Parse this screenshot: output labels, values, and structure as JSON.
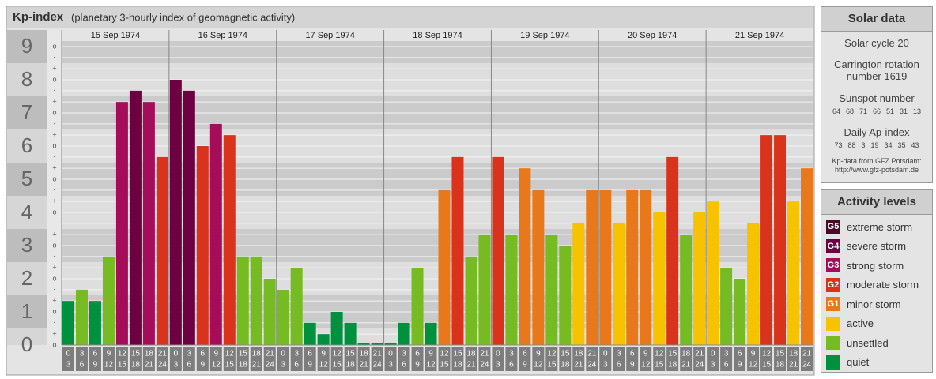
{
  "chart_data": {
    "type": "bar",
    "title": "Kp-index",
    "subtitle": "(planetary 3-hourly index of geomagnetic activity)",
    "ylim": [
      0,
      9.5
    ],
    "yticks": [
      0,
      1,
      2,
      3,
      4,
      5,
      6,
      7,
      8,
      9
    ],
    "subticks": [
      {
        "value": 0,
        "label": "o"
      },
      {
        "value": 0.33,
        "label": "+"
      },
      {
        "value": 0.67,
        "label": "-"
      },
      {
        "value": 1,
        "label": "o"
      },
      {
        "value": 1.33,
        "label": "+"
      },
      {
        "value": 1.67,
        "label": "-"
      },
      {
        "value": 2,
        "label": "o"
      },
      {
        "value": 2.33,
        "label": "+"
      },
      {
        "value": 2.67,
        "label": "-"
      },
      {
        "value": 3,
        "label": "o"
      },
      {
        "value": 3.33,
        "label": "+"
      },
      {
        "value": 3.67,
        "label": "-"
      },
      {
        "value": 4,
        "label": "o"
      },
      {
        "value": 4.33,
        "label": "+"
      },
      {
        "value": 4.67,
        "label": "-"
      },
      {
        "value": 5,
        "label": "o"
      },
      {
        "value": 5.33,
        "label": "+"
      },
      {
        "value": 5.67,
        "label": "-"
      },
      {
        "value": 6,
        "label": "o"
      },
      {
        "value": 6.33,
        "label": "+"
      },
      {
        "value": 6.67,
        "label": "-"
      },
      {
        "value": 7,
        "label": "o"
      },
      {
        "value": 7.33,
        "label": "+"
      },
      {
        "value": 7.67,
        "label": "-"
      },
      {
        "value": 8,
        "label": "o"
      },
      {
        "value": 8.33,
        "label": "+"
      },
      {
        "value": 8.67,
        "label": "-"
      },
      {
        "value": 9,
        "label": "o"
      }
    ],
    "hours": [
      [
        "0",
        "3"
      ],
      [
        "3",
        "6"
      ],
      [
        "6",
        "9"
      ],
      [
        "9",
        "12"
      ],
      [
        "12",
        "15"
      ],
      [
        "15",
        "18"
      ],
      [
        "18",
        "21"
      ],
      [
        "21",
        "24"
      ]
    ],
    "days": [
      {
        "date": "15 Sep 1974",
        "values": [
          1.33,
          1.67,
          1.33,
          2.67,
          7.33,
          7.67,
          7.33,
          5.67
        ],
        "colors": [
          "#00913f",
          "#76bb22",
          "#00913f",
          "#76bb22",
          "#a50d5a",
          "#6d0040",
          "#a50d5a",
          "#d9331b"
        ]
      },
      {
        "date": "16 Sep 1974",
        "values": [
          8,
          7.67,
          6,
          6.67,
          6.33,
          2.67,
          2.67,
          2
        ],
        "colors": [
          "#6d0040",
          "#6d0040",
          "#d9331b",
          "#a50d5a",
          "#d9331b",
          "#76bb22",
          "#76bb22",
          "#76bb22"
        ]
      },
      {
        "date": "17 Sep 1974",
        "values": [
          1.67,
          2.33,
          0.67,
          0.33,
          1,
          0.67,
          0,
          0
        ],
        "colors": [
          "#76bb22",
          "#76bb22",
          "#00913f",
          "#00913f",
          "#00913f",
          "#00913f",
          "#00913f",
          "#00913f"
        ]
      },
      {
        "date": "18 Sep 1974",
        "values": [
          0,
          0.67,
          2.33,
          0.67,
          4.67,
          5.67,
          2.67,
          3.33
        ],
        "colors": [
          "#00913f",
          "#00913f",
          "#76bb22",
          "#00913f",
          "#e8781a",
          "#d9331b",
          "#76bb22",
          "#76bb22"
        ]
      },
      {
        "date": "19 Sep 1974",
        "values": [
          5.67,
          3.33,
          5.33,
          4.67,
          3.33,
          3,
          3.67,
          4.67
        ],
        "colors": [
          "#d9331b",
          "#76bb22",
          "#e8781a",
          "#e8781a",
          "#76bb22",
          "#76bb22",
          "#f7c200",
          "#e8781a"
        ]
      },
      {
        "date": "20 Sep 1974",
        "values": [
          4.67,
          3.67,
          4.67,
          4.67,
          4,
          5.67,
          3.33,
          4
        ],
        "colors": [
          "#e8781a",
          "#f7c200",
          "#e8781a",
          "#e8781a",
          "#f7c200",
          "#d9331b",
          "#76bb22",
          "#f7c200"
        ]
      },
      {
        "date": "21 Sep 1974",
        "values": [
          4.33,
          2.33,
          2,
          3.67,
          6.33,
          6.33,
          4.33,
          5.33
        ],
        "colors": [
          "#f7c200",
          "#76bb22",
          "#76bb22",
          "#f7c200",
          "#d9331b",
          "#d9331b",
          "#f7c200",
          "#e8781a"
        ]
      }
    ]
  },
  "solar": {
    "title": "Solar data",
    "cycle": "Solar cycle 20",
    "carrington": [
      "Carrington rotation",
      "number 1619"
    ],
    "sunspot_title": "Sunspot number",
    "sunspot": [
      64,
      68,
      71,
      66,
      51,
      31,
      13
    ],
    "ap_title": "Daily Ap-index",
    "ap": [
      73,
      88,
      3,
      19,
      34,
      35,
      43
    ],
    "source": [
      "Kp-data from GFZ Potsdam:",
      "http://www.gfz-potsdam.de"
    ]
  },
  "legend": {
    "title": "Activity levels",
    "items": [
      {
        "code": "G5",
        "name": "extreme storm",
        "color": "#4a0a28"
      },
      {
        "code": "G4",
        "name": "severe storm",
        "color": "#6d0040"
      },
      {
        "code": "G3",
        "name": "strong storm",
        "color": "#a50d5a"
      },
      {
        "code": "G2",
        "name": "moderate storm",
        "color": "#d9331b"
      },
      {
        "code": "G1",
        "name": "minor storm",
        "color": "#e8781a"
      },
      {
        "name": "active",
        "color": "#f7c200"
      },
      {
        "name": "unsettled",
        "color": "#76bb22"
      },
      {
        "name": "quiet",
        "color": "#00913f"
      }
    ]
  }
}
